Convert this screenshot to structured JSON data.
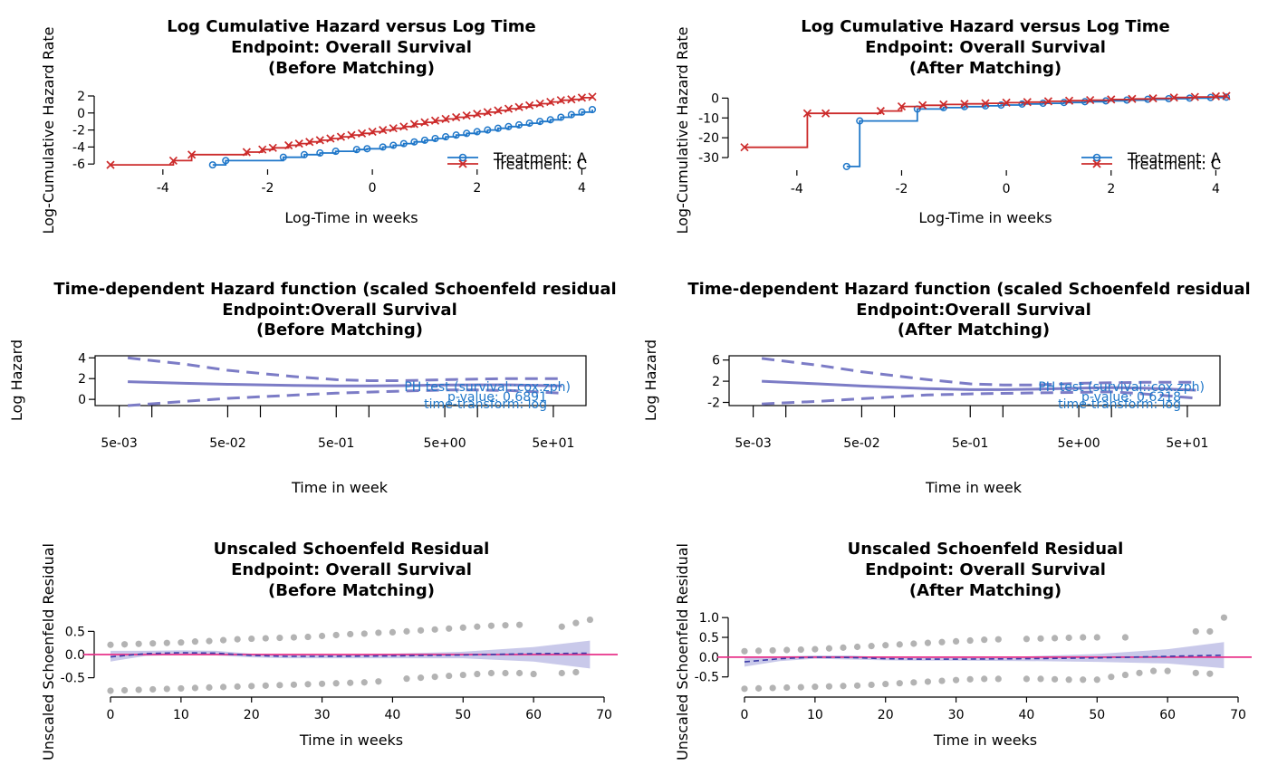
{
  "colors": {
    "treatment_a": "#1f77c9",
    "treatment_c": "#cc2b2b",
    "fit_line": "#7c7cc6",
    "band_fill": "#b7b7e3",
    "residual_points": "#9a9a9a",
    "zero_line": "#e8338a",
    "annotation": "#1f77c9"
  },
  "chart_data": [
    {
      "id": "p1",
      "type": "line",
      "title": [
        "Log Cumulative Hazard versus Log Time",
        "Endpoint: Overall Survival",
        "(Before Matching)"
      ],
      "xlabel": "Log-Time in weeks",
      "ylabel": "Log-Cumulative Hazard Rate",
      "xlim": [
        -5.0,
        4.2
      ],
      "ylim": [
        -6.3,
        2.0
      ],
      "xticks": [
        "-4",
        "-2",
        "0",
        "2",
        "4"
      ],
      "yticks": [
        "2",
        "0",
        "-2",
        "-4",
        "-6"
      ],
      "legend_position": "bottom-right",
      "series": [
        {
          "name": "Treatment: A",
          "marker": "circle",
          "x": [
            -3.05,
            -2.8,
            -1.7,
            -1.3,
            -1.0,
            -0.7,
            -0.3,
            -0.1,
            0.2,
            0.4,
            0.6,
            0.8,
            1.0,
            1.2,
            1.4,
            1.6,
            1.8,
            2.0,
            2.2,
            2.4,
            2.6,
            2.8,
            3.0,
            3.2,
            3.4,
            3.6,
            3.8,
            4.0,
            4.2
          ],
          "y": [
            -6.1,
            -5.6,
            -5.2,
            -4.9,
            -4.7,
            -4.5,
            -4.3,
            -4.2,
            -4.0,
            -3.8,
            -3.6,
            -3.4,
            -3.2,
            -3.0,
            -2.8,
            -2.6,
            -2.4,
            -2.2,
            -2.0,
            -1.8,
            -1.6,
            -1.4,
            -1.2,
            -1.0,
            -0.8,
            -0.5,
            -0.2,
            0.1,
            0.4
          ]
        },
        {
          "name": "Treatment: C",
          "marker": "x",
          "x": [
            -5.0,
            -3.8,
            -3.45,
            -2.4,
            -2.1,
            -1.9,
            -1.6,
            -1.4,
            -1.2,
            -1.0,
            -0.8,
            -0.6,
            -0.4,
            -0.2,
            0.0,
            0.2,
            0.4,
            0.6,
            0.8,
            1.0,
            1.2,
            1.4,
            1.6,
            1.8,
            2.0,
            2.2,
            2.4,
            2.6,
            2.8,
            3.0,
            3.2,
            3.4,
            3.6,
            3.8,
            4.0,
            4.2
          ],
          "y": [
            -6.1,
            -5.6,
            -4.9,
            -4.6,
            -4.3,
            -4.1,
            -3.8,
            -3.6,
            -3.4,
            -3.2,
            -3.0,
            -2.8,
            -2.6,
            -2.4,
            -2.2,
            -2.0,
            -1.8,
            -1.6,
            -1.3,
            -1.1,
            -0.9,
            -0.7,
            -0.5,
            -0.3,
            -0.1,
            0.1,
            0.3,
            0.5,
            0.7,
            0.9,
            1.1,
            1.3,
            1.5,
            1.6,
            1.8,
            1.9
          ]
        }
      ]
    },
    {
      "id": "p2",
      "type": "line",
      "title": [
        "Log Cumulative Hazard versus Log Time",
        "Endpoint: Overall Survival",
        "(After Matching)"
      ],
      "xlabel": "Log-Time in weeks",
      "ylabel": "Log-Cumulative Hazard Rate",
      "xlim": [
        -5.0,
        4.2
      ],
      "ylim": [
        -35.0,
        2.0
      ],
      "xticks": [
        "-4",
        "-2",
        "0",
        "2",
        "4"
      ],
      "yticks": [
        "0",
        "-10",
        "-20",
        "-30"
      ],
      "legend_position": "bottom-right",
      "series": [
        {
          "name": "Treatment: A",
          "marker": "circle",
          "x": [
            -3.05,
            -2.8,
            -1.7,
            -1.2,
            -0.8,
            -0.4,
            -0.1,
            0.3,
            0.7,
            1.1,
            1.5,
            1.9,
            2.3,
            2.7,
            3.1,
            3.5,
            3.9,
            4.2
          ],
          "y": [
            -34.5,
            -11.5,
            -5.5,
            -4.8,
            -4.3,
            -3.9,
            -3.5,
            -3.0,
            -2.6,
            -2.2,
            -1.8,
            -1.4,
            -1.0,
            -0.6,
            -0.3,
            0.0,
            0.3,
            0.5
          ]
        },
        {
          "name": "Treatment: C",
          "marker": "x",
          "x": [
            -5.0,
            -3.8,
            -3.45,
            -2.4,
            -2.0,
            -1.6,
            -1.2,
            -0.8,
            -0.4,
            0.0,
            0.4,
            0.8,
            1.2,
            1.6,
            2.0,
            2.4,
            2.8,
            3.2,
            3.6,
            4.0,
            4.2
          ],
          "y": [
            -24.8,
            -7.7,
            -7.7,
            -6.5,
            -4.2,
            -3.6,
            -3.2,
            -2.9,
            -2.6,
            -2.3,
            -2.0,
            -1.6,
            -1.3,
            -1.0,
            -0.7,
            -0.4,
            -0.1,
            0.3,
            0.6,
            0.9,
            1.1
          ]
        }
      ]
    },
    {
      "id": "p3",
      "type": "line",
      "title": [
        "Time-dependent Hazard function (scaled Schoenfeld residual",
        "Endpoint:Overall Survival",
        "(Before Matching)"
      ],
      "xlabel": "Time in week",
      "ylabel": "Log Hazard",
      "xscale": "log",
      "xlim": [
        0.003,
        100
      ],
      "ylim": [
        -0.6,
        4.2
      ],
      "xticks": [
        "5e-03",
        "5e-02",
        "5e-01",
        "5e+00",
        "5e+01"
      ],
      "xtick_values": [
        0.005,
        0.05,
        0.5,
        5,
        50
      ],
      "yticks": [
        "4",
        "2",
        "0"
      ],
      "ytick_values": [
        4,
        2,
        0
      ],
      "x": [
        0.006,
        0.02,
        0.05,
        0.2,
        0.5,
        1,
        2,
        5,
        10,
        20,
        60
      ],
      "fit": [
        1.7,
        1.55,
        1.45,
        1.35,
        1.3,
        1.3,
        1.32,
        1.38,
        1.4,
        1.4,
        1.3
      ],
      "upper": [
        4.0,
        3.4,
        2.8,
        2.2,
        1.9,
        1.8,
        1.8,
        1.9,
        1.95,
        2.0,
        2.0
      ],
      "lower": [
        -0.6,
        -0.2,
        0.1,
        0.4,
        0.6,
        0.7,
        0.8,
        0.9,
        0.9,
        0.85,
        0.6
      ],
      "annotation": [
        "PH test (survival::cox.zph)",
        "p-value: 0.6891",
        "time-transform: log"
      ]
    },
    {
      "id": "p4",
      "type": "line",
      "title": [
        "Time-dependent Hazard function (scaled Schoenfeld residual",
        "Endpoint:Overall Survival",
        "(After Matching)"
      ],
      "xlabel": "Time in week",
      "ylabel": "Log Hazard",
      "xscale": "log",
      "xlim": [
        0.003,
        100
      ],
      "ylim": [
        -2.6,
        6.8
      ],
      "xticks": [
        "5e-03",
        "5e-02",
        "5e-01",
        "5e+00",
        "5e+01"
      ],
      "xtick_values": [
        0.005,
        0.05,
        0.5,
        5,
        50
      ],
      "yticks": [
        "6",
        "2",
        "-2"
      ],
      "ytick_values": [
        6,
        2,
        -2
      ],
      "x": [
        0.006,
        0.02,
        0.05,
        0.2,
        0.5,
        1,
        2,
        5,
        10,
        20,
        60
      ],
      "fit": [
        2.0,
        1.5,
        1.1,
        0.6,
        0.4,
        0.4,
        0.5,
        0.7,
        0.8,
        0.7,
        0.3
      ],
      "upper": [
        6.3,
        5.0,
        3.8,
        2.3,
        1.5,
        1.3,
        1.3,
        1.6,
        1.7,
        1.8,
        1.8
      ],
      "lower": [
        -2.3,
        -1.8,
        -1.3,
        -0.6,
        -0.4,
        -0.3,
        -0.2,
        -0.1,
        0.0,
        -0.4,
        -1.2
      ],
      "annotation": [
        "PH test (survival::cox.zph)",
        "p-value: 0.6218",
        "time-transform: log"
      ]
    },
    {
      "id": "p5",
      "type": "scatter",
      "title": [
        "Unscaled Schoenfeld Residual",
        "Endpoint: Overall Survival",
        "(Before Matching)"
      ],
      "xlabel": "Time in weeks",
      "ylabel": "Unscaled Schoenfeld Residual",
      "xlim": [
        0,
        70
      ],
      "ylim": [
        -0.8,
        0.8
      ],
      "xticks": [
        "0",
        "10",
        "20",
        "30",
        "40",
        "50",
        "60",
        "70"
      ],
      "xtick_values": [
        0,
        10,
        20,
        30,
        40,
        50,
        60,
        70
      ],
      "yticks": [
        "0.5",
        "0.0",
        "-0.5"
      ],
      "ytick_values": [
        0.5,
        0.0,
        -0.5
      ],
      "points_upper": {
        "x": [
          0,
          2,
          4,
          6,
          8,
          10,
          12,
          14,
          16,
          18,
          20,
          22,
          24,
          26,
          28,
          30,
          32,
          34,
          36,
          38,
          40,
          42,
          44,
          46,
          48,
          50,
          52,
          54,
          56,
          58,
          64,
          66,
          68
        ],
        "y": [
          0.21,
          0.22,
          0.23,
          0.24,
          0.25,
          0.26,
          0.28,
          0.29,
          0.31,
          0.33,
          0.34,
          0.35,
          0.36,
          0.37,
          0.38,
          0.4,
          0.42,
          0.44,
          0.45,
          0.47,
          0.48,
          0.5,
          0.52,
          0.54,
          0.56,
          0.58,
          0.6,
          0.62,
          0.63,
          0.64,
          0.6,
          0.68,
          0.75
        ]
      },
      "points_lower": {
        "x": [
          0,
          2,
          4,
          6,
          8,
          10,
          12,
          14,
          16,
          18,
          20,
          22,
          24,
          26,
          28,
          30,
          32,
          34,
          36,
          38,
          42,
          44,
          46,
          48,
          50,
          52,
          54,
          56,
          58,
          60,
          64,
          66
        ],
        "y": [
          -0.78,
          -0.77,
          -0.76,
          -0.75,
          -0.74,
          -0.73,
          -0.72,
          -0.71,
          -0.7,
          -0.69,
          -0.68,
          -0.67,
          -0.66,
          -0.65,
          -0.64,
          -0.63,
          -0.62,
          -0.61,
          -0.6,
          -0.58,
          -0.52,
          -0.5,
          -0.48,
          -0.46,
          -0.44,
          -0.42,
          -0.4,
          -0.4,
          -0.4,
          -0.42,
          -0.4,
          -0.38
        ]
      },
      "trend": {
        "x": [
          0,
          5,
          10,
          15,
          20,
          25,
          30,
          40,
          50,
          60,
          68
        ],
        "y": [
          -0.05,
          0.02,
          0.04,
          0.03,
          -0.02,
          -0.04,
          -0.04,
          -0.03,
          -0.01,
          0.02,
          0.03
        ],
        "upper": [
          0.08,
          0.08,
          0.09,
          0.08,
          0.02,
          0.0,
          0.0,
          0.02,
          0.06,
          0.16,
          0.3
        ],
        "lower": [
          -0.15,
          -0.03,
          -0.01,
          -0.02,
          -0.06,
          -0.08,
          -0.08,
          -0.08,
          -0.08,
          -0.15,
          -0.3
        ]
      },
      "reference_line": 0
    },
    {
      "id": "p6",
      "type": "scatter",
      "title": [
        "Unscaled Schoenfeld Residual",
        "Endpoint: Overall Survival",
        "(After Matching)"
      ],
      "xlabel": "Time in weeks",
      "ylabel": "Unscaled Schoenfeld Residual",
      "xlim": [
        0,
        70
      ],
      "ylim": [
        -0.85,
        1.05
      ],
      "xticks": [
        "0",
        "10",
        "20",
        "30",
        "40",
        "50",
        "60",
        "70"
      ],
      "xtick_values": [
        0,
        10,
        20,
        30,
        40,
        50,
        60,
        70
      ],
      "yticks": [
        "1.0",
        "0.5",
        "0.0",
        "-0.5"
      ],
      "ytick_values": [
        1.0,
        0.5,
        0.0,
        -0.5
      ],
      "points_upper": {
        "x": [
          0,
          2,
          4,
          6,
          8,
          10,
          12,
          14,
          16,
          18,
          20,
          22,
          24,
          26,
          28,
          30,
          32,
          34,
          36,
          40,
          42,
          44,
          46,
          48,
          50,
          54,
          64,
          66,
          68
        ],
        "y": [
          0.15,
          0.16,
          0.17,
          0.18,
          0.19,
          0.2,
          0.22,
          0.24,
          0.26,
          0.28,
          0.3,
          0.32,
          0.34,
          0.36,
          0.38,
          0.4,
          0.42,
          0.44,
          0.45,
          0.46,
          0.47,
          0.48,
          0.49,
          0.5,
          0.5,
          0.5,
          0.65,
          0.65,
          1.0
        ]
      },
      "points_lower": {
        "x": [
          0,
          2,
          4,
          6,
          8,
          10,
          12,
          14,
          16,
          18,
          20,
          22,
          24,
          26,
          28,
          30,
          32,
          34,
          36,
          40,
          42,
          44,
          46,
          48,
          50,
          52,
          54,
          56,
          58,
          60,
          64,
          66
        ],
        "y": [
          -0.8,
          -0.79,
          -0.78,
          -0.77,
          -0.76,
          -0.75,
          -0.74,
          -0.73,
          -0.72,
          -0.7,
          -0.68,
          -0.66,
          -0.64,
          -0.62,
          -0.6,
          -0.58,
          -0.56,
          -0.55,
          -0.55,
          -0.55,
          -0.55,
          -0.56,
          -0.57,
          -0.57,
          -0.57,
          -0.5,
          -0.45,
          -0.4,
          -0.35,
          -0.35,
          -0.4,
          -0.42
        ]
      },
      "trend": {
        "x": [
          0,
          5,
          10,
          15,
          20,
          25,
          30,
          40,
          50,
          60,
          68
        ],
        "y": [
          -0.12,
          -0.04,
          0.0,
          -0.01,
          -0.04,
          -0.05,
          -0.05,
          -0.04,
          -0.02,
          0.02,
          0.05
        ],
        "upper": [
          0.0,
          0.02,
          0.04,
          0.04,
          0.0,
          -0.01,
          -0.01,
          0.02,
          0.08,
          0.2,
          0.38
        ],
        "lower": [
          -0.24,
          -0.1,
          -0.04,
          -0.06,
          -0.08,
          -0.09,
          -0.09,
          -0.1,
          -0.12,
          -0.16,
          -0.28
        ]
      },
      "reference_line": 0
    }
  ]
}
